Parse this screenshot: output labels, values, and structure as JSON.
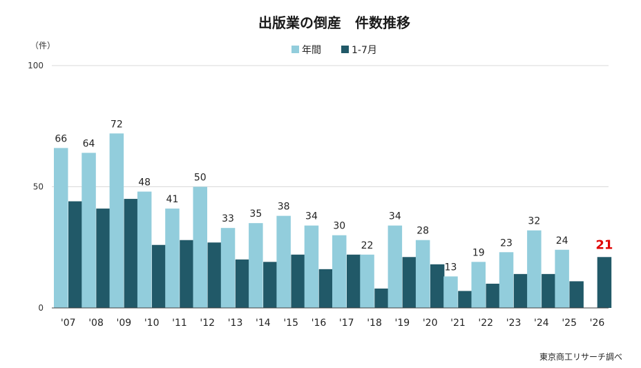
{
  "chart_data": {
    "type": "bar",
    "title": "出版業の倒産　件数推移",
    "unit_label": "（件）",
    "source": "東京商工リサーチ調べ",
    "categories": [
      "'07",
      "'08",
      "'09",
      "'10",
      "'11",
      "'12",
      "'13",
      "'14",
      "'15",
      "'16",
      "'17",
      "'18",
      "'19",
      "'20",
      "'21",
      "'22",
      "'23",
      "'24",
      "'25",
      "'26"
    ],
    "series": [
      {
        "name": "年間",
        "color": "#92cddc",
        "values": [
          66,
          64,
          72,
          48,
          41,
          50,
          33,
          35,
          38,
          34,
          30,
          22,
          34,
          28,
          13,
          19,
          23,
          32,
          24,
          null
        ],
        "labels": [
          "66",
          "64",
          "72",
          "48",
          "41",
          "50",
          "33",
          "35",
          "38",
          "34",
          "30",
          "22",
          "34",
          "28",
          "13",
          "19",
          "23",
          "32",
          "24",
          ""
        ]
      },
      {
        "name": "1-7月",
        "color": "#215968",
        "values": [
          44,
          41,
          45,
          26,
          28,
          27,
          20,
          19,
          22,
          16,
          22,
          8,
          21,
          18,
          7,
          10,
          14,
          14,
          11,
          21
        ]
      }
    ],
    "highlight_label": {
      "category": "'26",
      "text": "21",
      "color": "#e00000"
    },
    "yticks": [
      "0",
      "50",
      "100"
    ],
    "ylim": [
      0,
      100
    ],
    "grid": true,
    "legend_position": "top-center"
  }
}
